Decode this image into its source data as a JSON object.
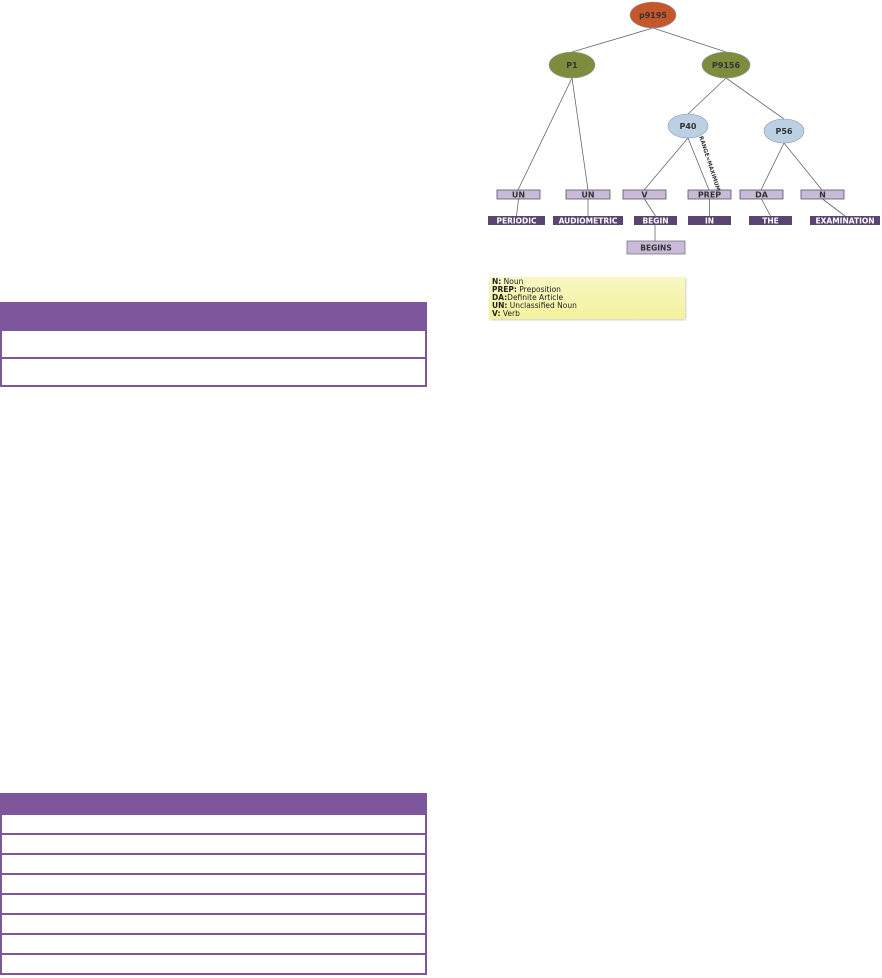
{
  "colors": {
    "table_accent": "#7e569c",
    "root_node": "#c4582a",
    "level1_node": "#7e8c3e",
    "level2_node": "#bcd0e4",
    "pos_box": "#c9bad9",
    "word_box": "#5a4470",
    "legend_bg": "#f6f5b4"
  },
  "tables": [
    {
      "rows": 2
    },
    {
      "rows": 8
    }
  ],
  "tree": {
    "nodes": {
      "root": "p9195",
      "p1": "P1",
      "p9156": "P9156",
      "p40": "P40",
      "p56": "P56"
    },
    "edge_label": "RANGE=MAXIMUM",
    "pos_tags": [
      "UN",
      "UN",
      "V",
      "PREP",
      "DA",
      "N"
    ],
    "words": [
      "PERIODIC",
      "AUDIOMETRIC",
      "BEGIN",
      "IN",
      "THE",
      "EXAMINATION"
    ],
    "lemma": "BEGINS"
  },
  "legend": [
    {
      "abbr": "N:",
      "text": " Noun"
    },
    {
      "abbr": "PREP:",
      "text": " Preposition"
    },
    {
      "abbr": "DA:",
      "text": "Definite Article"
    },
    {
      "abbr": "UN:",
      "text": " Unclassified Noun"
    },
    {
      "abbr": "V:",
      "text": " Verb"
    }
  ]
}
